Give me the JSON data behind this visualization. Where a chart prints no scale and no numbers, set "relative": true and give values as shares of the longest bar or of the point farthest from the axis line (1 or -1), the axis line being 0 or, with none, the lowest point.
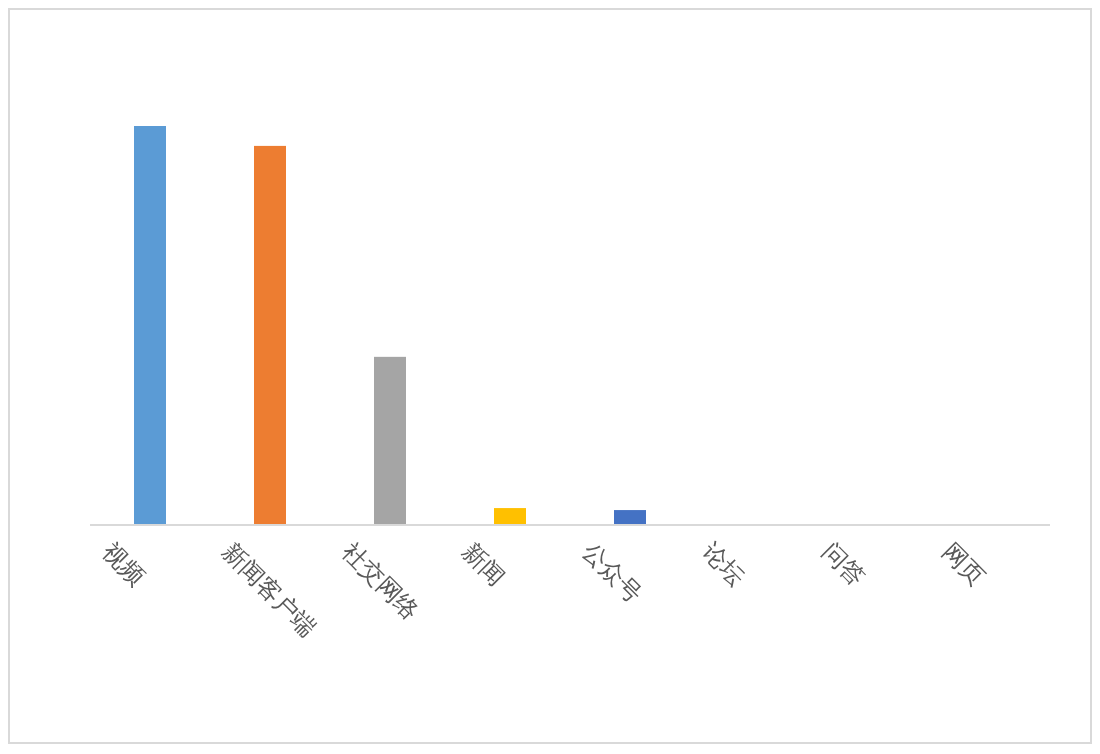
{
  "chart_data": {
    "type": "bar",
    "relative": true,
    "categories": [
      "视频",
      "新闻客户端",
      "社交网络",
      "新闻",
      "公众号",
      "论坛",
      "问答",
      "网页"
    ],
    "values": [
      1,
      0.95,
      0.42,
      0.04,
      0.035,
      0,
      0,
      0
    ],
    "colors": [
      "#5b9bd5",
      "#ed7d31",
      "#a5a5a5",
      "#ffc000",
      "#4472c4",
      "#70ad47",
      "#255e91",
      "#9e480e"
    ]
  }
}
